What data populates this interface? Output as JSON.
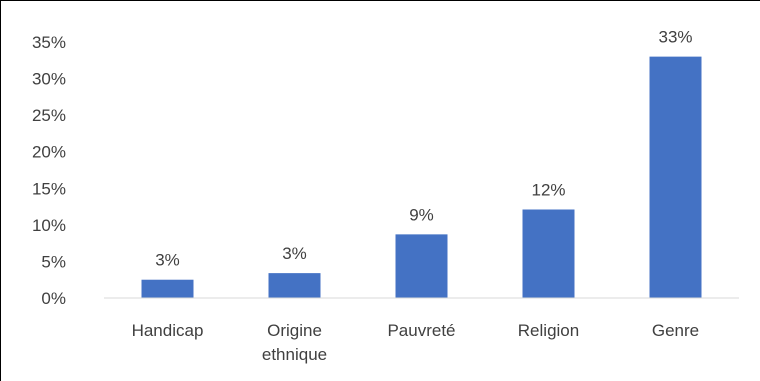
{
  "chart_data": {
    "type": "bar",
    "categories": [
      "Handicap",
      "Origine ethnique",
      "Pauvreté",
      "Religion",
      "Genre"
    ],
    "category_lines": [
      [
        "Handicap"
      ],
      [
        "Origine",
        "ethnique"
      ],
      [
        "Pauvreté"
      ],
      [
        "Religion"
      ],
      [
        "Genre"
      ]
    ],
    "values": [
      2.5,
      3.4,
      8.7,
      12.1,
      33.0
    ],
    "data_labels": [
      "3%",
      "3%",
      "9%",
      "12%",
      "33%"
    ],
    "yticks": [
      "0%",
      "5%",
      "10%",
      "15%",
      "20%",
      "25%",
      "30%",
      "35%"
    ],
    "ylim": [
      0,
      35
    ],
    "bar_color": "#4472C4",
    "gridlines": false,
    "legend": "none",
    "title": "",
    "xlabel": "",
    "ylabel": ""
  }
}
